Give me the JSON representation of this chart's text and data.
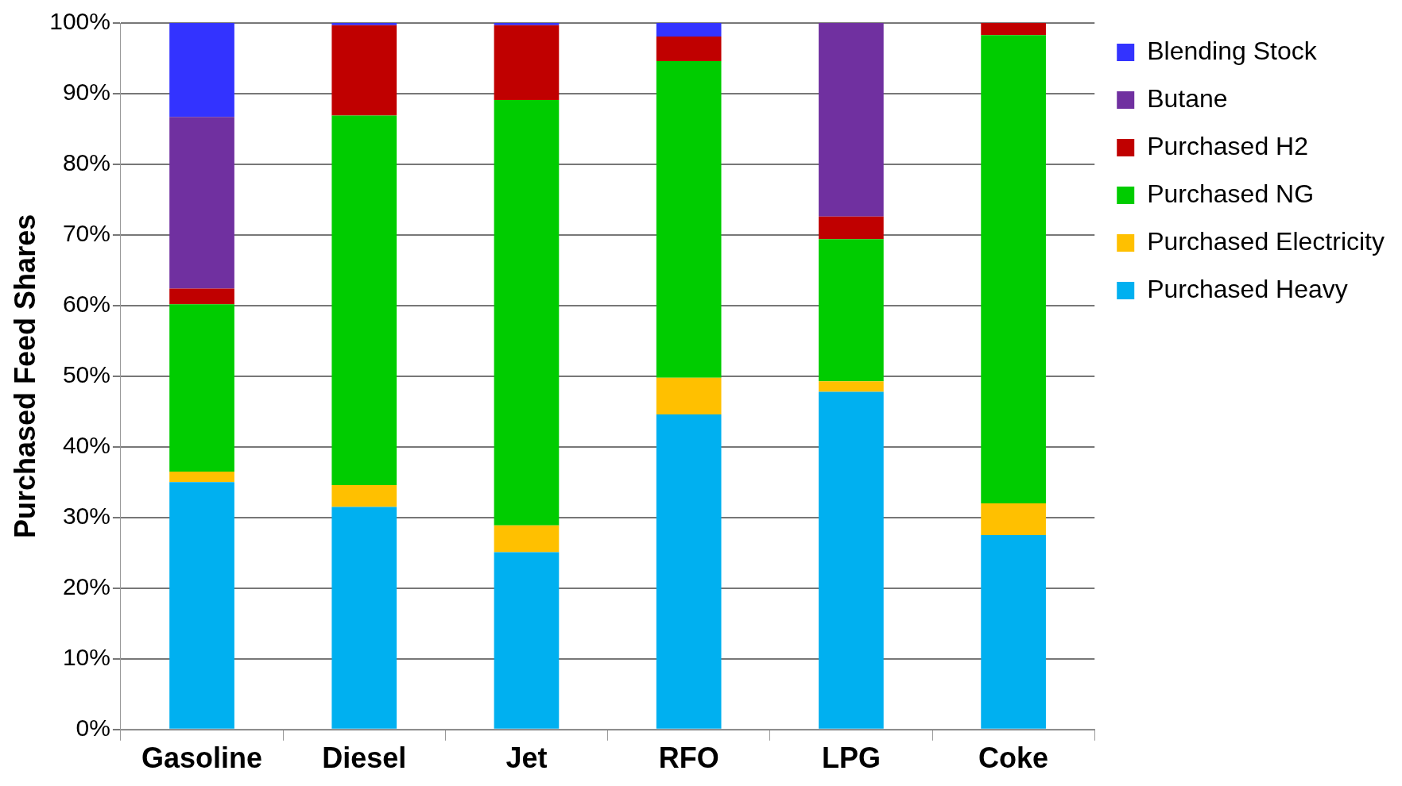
{
  "chart_data": {
    "type": "bar",
    "stacked": true,
    "ylabel": "Purchased Feed Shares",
    "categories": [
      "Gasoline",
      "Diesel",
      "Jet",
      "RFO",
      "LPG",
      "Coke"
    ],
    "series": [
      {
        "name": "Purchased Heavy",
        "color": "#00b0f0",
        "values": [
          35,
          31.5,
          25.1,
          44.6,
          47.8,
          27.5
        ]
      },
      {
        "name": "Purchased Electricity",
        "color": "#ffc000",
        "values": [
          1.5,
          3.1,
          3.8,
          5.2,
          1.5,
          4.5
        ]
      },
      {
        "name": "Purchased NG",
        "color": "#00cc00",
        "values": [
          23.7,
          52.3,
          60.2,
          44.8,
          20.1,
          66.3
        ]
      },
      {
        "name": "Purchased H2",
        "color": "#c00000",
        "values": [
          2.2,
          12.8,
          10.6,
          3.5,
          3.2,
          1.7
        ]
      },
      {
        "name": "Butane",
        "color": "#7030a0",
        "values": [
          24.3,
          0,
          0,
          0,
          27.4,
          0
        ]
      },
      {
        "name": "Blending Stock",
        "color": "#3333ff",
        "values": [
          13.3,
          0.3,
          0.3,
          1.9,
          0,
          0
        ]
      }
    ],
    "ylim": [
      0,
      100
    ],
    "yticks": [
      {
        "value": 0,
        "label": "0%"
      },
      {
        "value": 10,
        "label": "10%"
      },
      {
        "value": 20,
        "label": "20%"
      },
      {
        "value": 30,
        "label": "30%"
      },
      {
        "value": 40,
        "label": "40%"
      },
      {
        "value": 50,
        "label": "50%"
      },
      {
        "value": 60,
        "label": "60%"
      },
      {
        "value": 70,
        "label": "70%"
      },
      {
        "value": 80,
        "label": "80%"
      },
      {
        "value": 90,
        "label": "90%"
      },
      {
        "value": 100,
        "label": "100%"
      }
    ],
    "grid": "y",
    "legend": "right"
  }
}
